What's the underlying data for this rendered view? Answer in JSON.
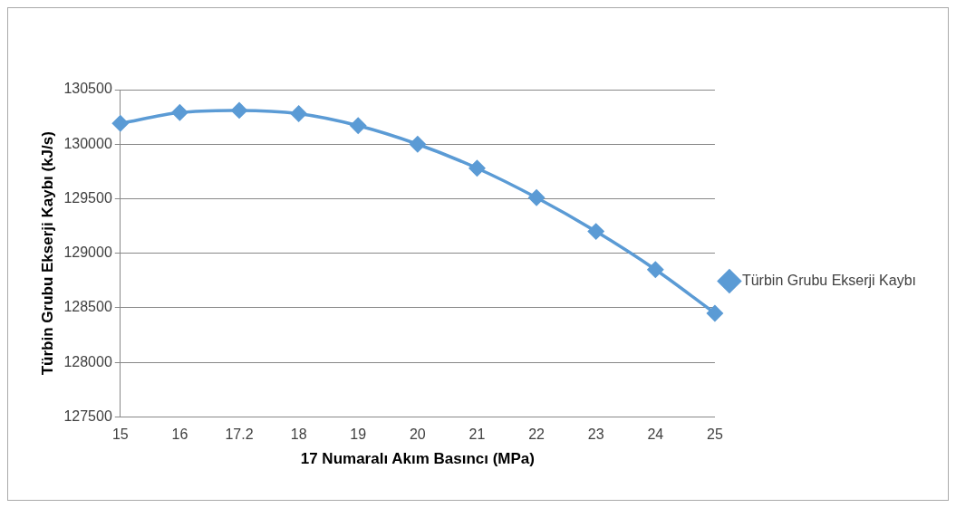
{
  "chart_data": {
    "type": "line",
    "xlabel": "17 Numaralı Akım Basıncı (MPa)",
    "ylabel": "Türbin Grubu Ekserji Kaybı (kJ/s)",
    "categories": [
      "15",
      "16",
      "17.2",
      "18",
      "19",
      "20",
      "21",
      "22",
      "23",
      "24",
      "25"
    ],
    "series": [
      {
        "name": "Türbin Grubu Ekserji Kaybı",
        "color": "#5b9bd5",
        "values": [
          130190,
          130290,
          130310,
          130280,
          130170,
          130000,
          129780,
          129510,
          129200,
          128850,
          128450
        ]
      }
    ],
    "ylim": [
      127500,
      130500
    ],
    "yticks": [
      127500,
      128000,
      128500,
      129000,
      129500,
      130000,
      130500
    ],
    "grid": "y",
    "legend": "right",
    "marker": "diamond",
    "line_style": "solid"
  }
}
